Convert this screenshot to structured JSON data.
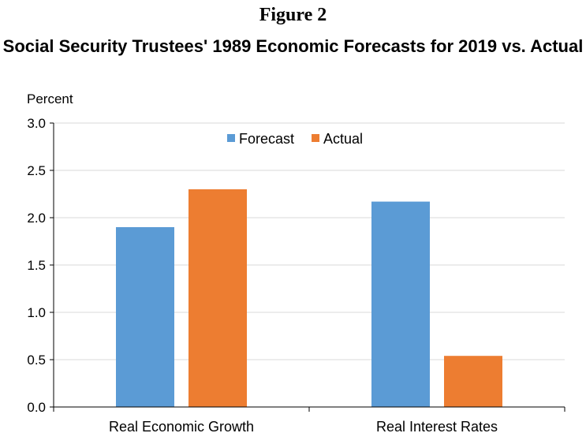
{
  "figure_label": "Figure 2",
  "chart_data": {
    "type": "bar",
    "title": "Social Security Trustees' 1989 Economic Forecasts for 2019 vs. Actual",
    "ylabel": "Percent",
    "xlabel": "",
    "categories": [
      "Real Economic Growth",
      "Real Interest Rates"
    ],
    "series": [
      {
        "name": "Forecast",
        "values": [
          1.9,
          2.17
        ],
        "color": "#5b9bd5"
      },
      {
        "name": "Actual",
        "values": [
          2.3,
          0.54
        ],
        "color": "#ed7d31"
      }
    ],
    "ylim": [
      0,
      3.0
    ],
    "yticks": [
      "0.0",
      "0.5",
      "1.0",
      "1.5",
      "2.0",
      "2.5",
      "3.0"
    ],
    "grid": true,
    "legend_position": "top-center"
  }
}
